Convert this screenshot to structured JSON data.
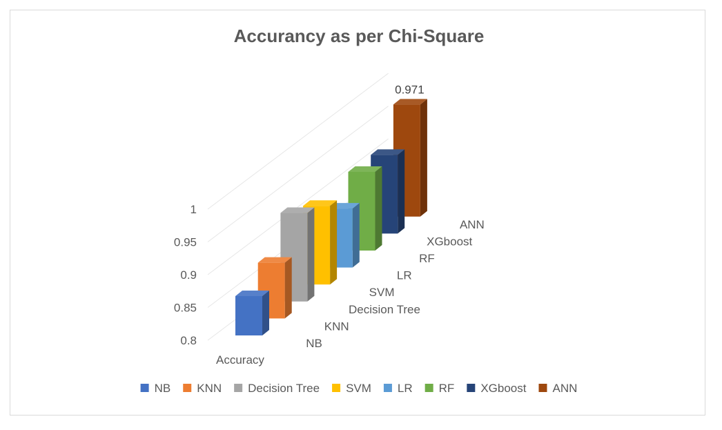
{
  "chart_data": {
    "type": "bar",
    "title": "Accurancy as per Chi-Square",
    "categories": [
      "Accuracy"
    ],
    "series": [
      {
        "name": "NB",
        "values": [
          0.86
        ],
        "color": "#4472c4"
      },
      {
        "name": "KNN",
        "values": [
          0.885
        ],
        "color": "#ed7d31"
      },
      {
        "name": "Decision Tree",
        "values": [
          0.935
        ],
        "color": "#a5a5a5"
      },
      {
        "name": "SVM",
        "values": [
          0.92
        ],
        "color": "#ffc000"
      },
      {
        "name": "LR",
        "values": [
          0.89
        ],
        "color": "#5b9bd5"
      },
      {
        "name": "RF",
        "values": [
          0.92
        ],
        "color": "#70ad47"
      },
      {
        "name": "XGboost",
        "values": [
          0.92
        ],
        "color": "#264478"
      },
      {
        "name": "ANN",
        "values": [
          0.971
        ],
        "color": "#9e480e"
      }
    ],
    "data_labels": [
      {
        "series": "ANN",
        "text": "0.971"
      }
    ],
    "yticks": [
      "0.8",
      "0.85",
      "0.9",
      "0.95",
      "1"
    ],
    "ylim": [
      0.8,
      1.0
    ],
    "chart_style": "3d-column",
    "legend": "bottom",
    "grid": true
  }
}
